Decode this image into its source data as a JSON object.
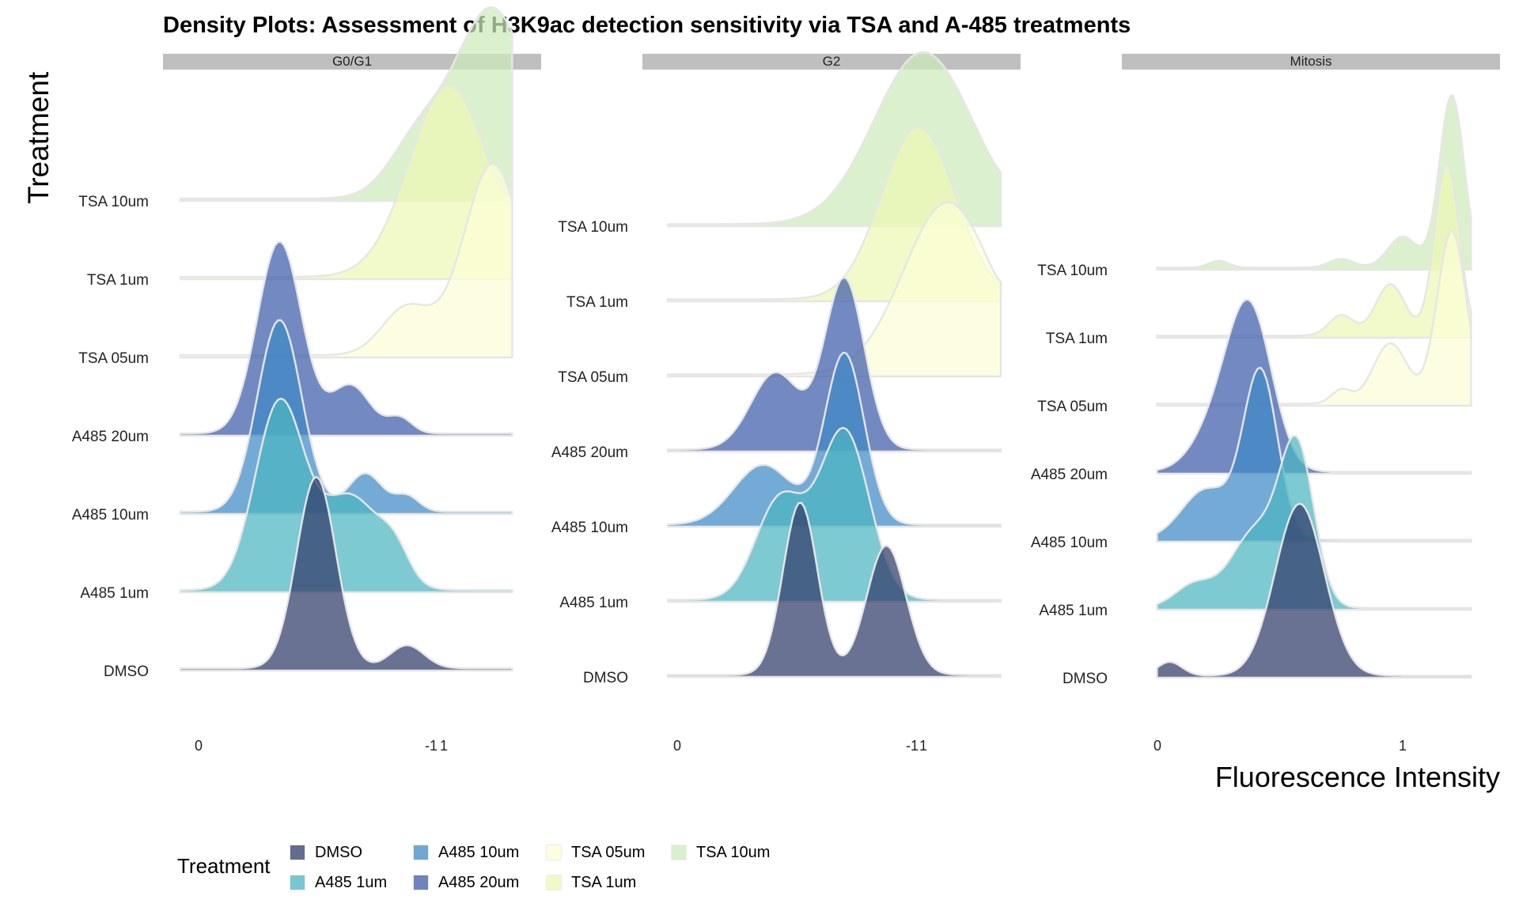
{
  "title": "Density Plots: Assessment of H3K9ac detection sensitivity via TSA and A-485 treatments",
  "y_axis_title": "Treatment",
  "x_axis_title": "Fluorescence Intensity",
  "legend": {
    "title": "Treatment",
    "items": [
      {
        "label": "DMSO",
        "color": "#313C6A"
      },
      {
        "label": "A485 1um",
        "color": "#4BB5C1"
      },
      {
        "label": "A485 10um",
        "color": "#3E8BC6"
      },
      {
        "label": "A485 20um",
        "color": "#3D5CA9"
      },
      {
        "label": "TSA 05um",
        "color": "#FCFED6"
      },
      {
        "label": "TSA 1um",
        "color": "#EEF8B4"
      },
      {
        "label": "TSA 10um",
        "color": "#CDEBBB"
      }
    ]
  },
  "chart_data": {
    "type": "ridgeline-density",
    "title": "Density Plots: Assessment of H3K9ac detection sensitivity via TSA and A-485 treatments",
    "xlabel": "Fluorescence Intensity",
    "ylabel": "Treatment",
    "x_ticks": [
      "-1",
      "0",
      "1"
    ],
    "xlim": [
      -1.15,
      1.75
    ],
    "treatments": [
      "DMSO",
      "A485 1um",
      "A485 10um",
      "A485 20um",
      "TSA 05um",
      "TSA 1um",
      "TSA 10um"
    ],
    "legend_position": "bottom",
    "grid": false,
    "facets": [
      {
        "label": "G0/G1",
        "series": [
          {
            "name": "DMSO",
            "peaks": [
              [
                0.48,
                0.08,
                1.0
              ],
              [
                0.85,
                0.07,
                0.12
              ]
            ]
          },
          {
            "name": "A485 1um",
            "peaks": [
              [
                0.33,
                0.1,
                1.0
              ],
              [
                0.62,
                0.12,
                0.5
              ],
              [
                0.8,
                0.06,
                0.15
              ]
            ]
          },
          {
            "name": "A485 10um",
            "peaks": [
              [
                0.33,
                0.09,
                1.0
              ],
              [
                0.68,
                0.07,
                0.2
              ],
              [
                0.85,
                0.05,
                0.08
              ]
            ]
          },
          {
            "name": "A485 20um",
            "peaks": [
              [
                0.33,
                0.09,
                1.0
              ],
              [
                0.62,
                0.08,
                0.25
              ],
              [
                0.82,
                0.05,
                0.08
              ]
            ]
          },
          {
            "name": "TSA 05um",
            "peaks": [
              [
                1.2,
                0.12,
                1.0
              ],
              [
                0.85,
                0.1,
                0.25
              ],
              [
                1.45,
                0.05,
                0.3
              ]
            ]
          },
          {
            "name": "TSA 1um",
            "peaks": [
              [
                1.02,
                0.16,
                1.0
              ],
              [
                1.4,
                0.08,
                0.45
              ]
            ]
          },
          {
            "name": "TSA 10um",
            "peaks": [
              [
                1.2,
                0.15,
                1.0
              ],
              [
                0.9,
                0.12,
                0.3
              ],
              [
                1.42,
                0.05,
                0.35
              ]
            ]
          }
        ]
      },
      {
        "label": "G2",
        "series": [
          {
            "name": "DMSO",
            "peaks": [
              [
                0.5,
                0.07,
                1.0
              ],
              [
                0.85,
                0.08,
                0.75
              ]
            ]
          },
          {
            "name": "A485 1um",
            "peaks": [
              [
                0.68,
                0.1,
                1.0
              ],
              [
                0.42,
                0.1,
                0.6
              ]
            ]
          },
          {
            "name": "A485 10um",
            "peaks": [
              [
                0.68,
                0.08,
                1.0
              ],
              [
                0.35,
                0.12,
                0.35
              ]
            ]
          },
          {
            "name": "A485 20um",
            "peaks": [
              [
                0.68,
                0.08,
                1.0
              ],
              [
                0.4,
                0.1,
                0.45
              ]
            ]
          },
          {
            "name": "TSA 05um",
            "peaks": [
              [
                1.1,
                0.18,
                1.0
              ],
              [
                1.45,
                0.06,
                0.6
              ]
            ]
          },
          {
            "name": "TSA 1um",
            "peaks": [
              [
                0.98,
                0.15,
                1.0
              ],
              [
                1.45,
                0.05,
                0.45
              ]
            ]
          },
          {
            "name": "TSA 10um",
            "peaks": [
              [
                1.0,
                0.2,
                1.0
              ],
              [
                1.45,
                0.05,
                0.5
              ]
            ]
          }
        ]
      },
      {
        "label": "Mitosis",
        "series": [
          {
            "name": "DMSO",
            "peaks": [
              [
                0.58,
                0.1,
                1.0
              ],
              [
                0.05,
                0.05,
                0.08
              ]
            ]
          },
          {
            "name": "A485 1um",
            "peaks": [
              [
                0.57,
                0.07,
                1.0
              ],
              [
                0.4,
                0.1,
                0.5
              ],
              [
                0.15,
                0.08,
                0.15
              ]
            ]
          },
          {
            "name": "A485 10um",
            "peaks": [
              [
                0.42,
                0.07,
                1.0
              ],
              [
                0.2,
                0.1,
                0.3
              ]
            ]
          },
          {
            "name": "A485 20um",
            "peaks": [
              [
                0.38,
                0.09,
                1.0
              ],
              [
                0.25,
                0.1,
                0.3
              ]
            ]
          },
          {
            "name": "TSA 05um",
            "peaks": [
              [
                1.2,
                0.06,
                1.0
              ],
              [
                0.95,
                0.07,
                0.35
              ],
              [
                0.75,
                0.04,
                0.08
              ]
            ]
          },
          {
            "name": "TSA 1um",
            "peaks": [
              [
                1.18,
                0.05,
                1.0
              ],
              [
                0.95,
                0.06,
                0.3
              ],
              [
                0.75,
                0.05,
                0.12
              ]
            ]
          },
          {
            "name": "TSA 10um",
            "peaks": [
              [
                1.2,
                0.05,
                1.0
              ],
              [
                1.0,
                0.06,
                0.18
              ],
              [
                0.75,
                0.05,
                0.05
              ],
              [
                0.25,
                0.04,
                0.04
              ]
            ]
          }
        ]
      }
    ]
  }
}
